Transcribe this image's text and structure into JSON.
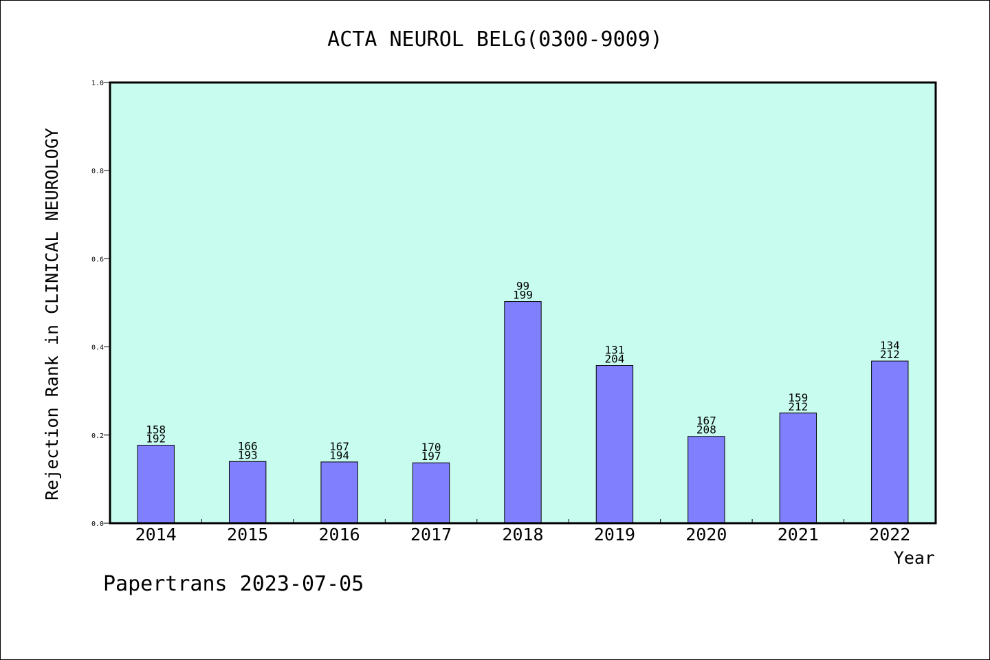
{
  "chart_data": {
    "type": "bar",
    "title": "ACTA NEUROL BELG(0300-9009)",
    "xlabel": "Year",
    "ylabel": "Rejection Rank in CLINICAL NEUROLOGY",
    "ylim": [
      0,
      1.0
    ],
    "yticks": [
      "0.0",
      "0.2",
      "0.4",
      "0.6",
      "0.8",
      "1.0"
    ],
    "grid": false,
    "plot_background": "#c8fcee",
    "bar_color": "#8080ff",
    "categories": [
      "2014",
      "2015",
      "2016",
      "2017",
      "2018",
      "2019",
      "2020",
      "2021",
      "2022"
    ],
    "values": [
      0.177,
      0.14,
      0.139,
      0.137,
      0.503,
      0.358,
      0.197,
      0.25,
      0.368
    ],
    "labels": [
      [
        "158",
        "192"
      ],
      [
        "166",
        "193"
      ],
      [
        "167",
        "194"
      ],
      [
        "170",
        "197"
      ],
      [
        "99",
        "199"
      ],
      [
        "131",
        "204"
      ],
      [
        "167",
        "208"
      ],
      [
        "159",
        "212"
      ],
      [
        "134",
        "212"
      ]
    ]
  },
  "footer": "Papertrans 2023-07-05"
}
